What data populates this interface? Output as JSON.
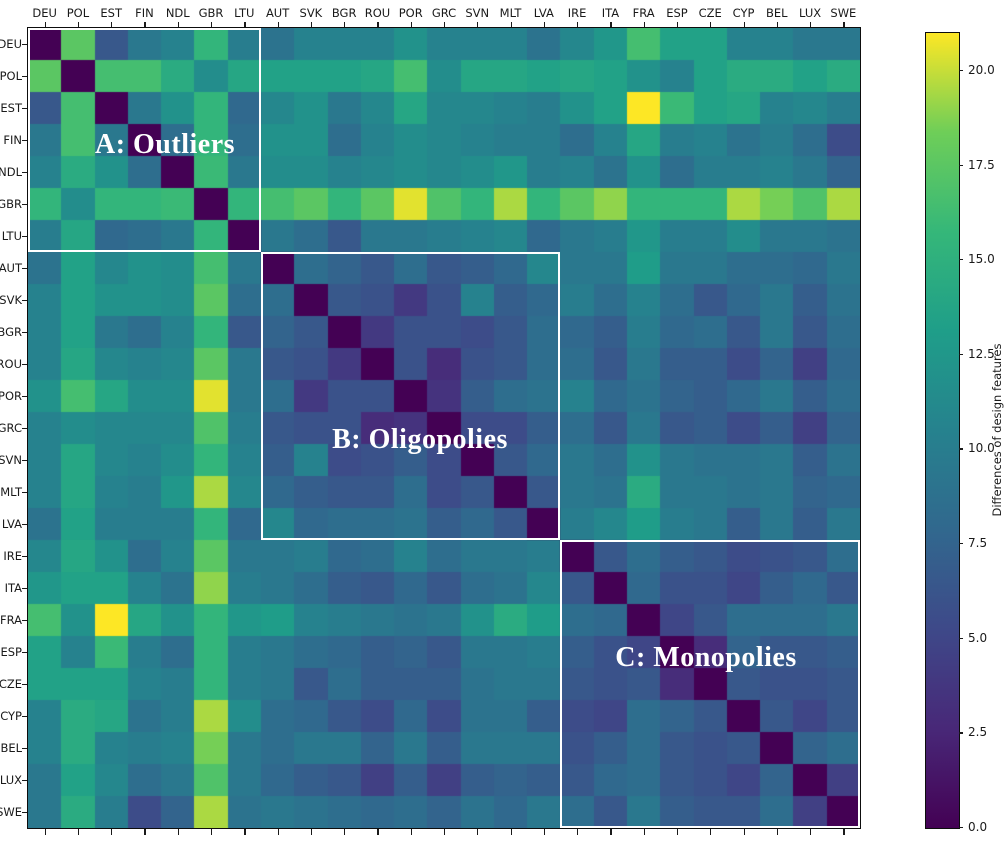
{
  "chart_data": {
    "type": "heatmap",
    "title": "",
    "categories": [
      "DEU",
      "POL",
      "EST",
      "FIN",
      "NDL",
      "GBR",
      "LTU",
      "AUT",
      "SVK",
      "BGR",
      "ROU",
      "POR",
      "GRC",
      "SVN",
      "MLT",
      "LVA",
      "IRE",
      "ITA",
      "FRA",
      "ESP",
      "CZE",
      "CYP",
      "BEL",
      "LUX",
      "SWE"
    ],
    "matrix": [
      [
        0,
        17.5,
        6.5,
        9.5,
        10.5,
        15.5,
        10,
        9,
        10.5,
        10.5,
        10.5,
        12,
        10.5,
        10.5,
        10.5,
        9,
        11,
        12.5,
        16.5,
        13.5,
        13.5,
        10.5,
        10.5,
        9.5,
        9.5
      ],
      [
        17.5,
        0,
        16.5,
        16.5,
        14.5,
        11.5,
        14,
        13.5,
        13.5,
        13.5,
        14,
        16.5,
        11.5,
        14,
        14,
        13.5,
        14,
        13.5,
        12,
        10.5,
        13.5,
        14.5,
        14.5,
        13.5,
        14.5
      ],
      [
        6.5,
        16.5,
        0,
        9.5,
        12,
        15.5,
        8,
        11,
        12,
        9.5,
        11,
        14,
        11,
        11,
        10.5,
        10,
        12,
        13.5,
        21,
        16,
        13.5,
        14,
        10.5,
        11,
        10
      ],
      [
        9.5,
        16.5,
        9.5,
        0,
        8.5,
        15.5,
        8.5,
        12,
        12,
        8.5,
        10.5,
        11.5,
        11,
        10.5,
        10,
        10,
        8.5,
        10.5,
        14,
        10,
        10.5,
        9,
        10,
        8.5,
        5.5
      ],
      [
        10.5,
        14.5,
        12,
        8.5,
        0,
        16,
        9.5,
        11.5,
        11.5,
        10.5,
        11,
        11.5,
        11,
        11.5,
        12.5,
        10,
        10.5,
        9,
        12,
        8.5,
        10,
        10,
        10.5,
        9.5,
        7.5
      ],
      [
        15.5,
        11.5,
        15.5,
        15.5,
        16,
        0,
        15.5,
        16.5,
        17.5,
        15.5,
        17.5,
        20.5,
        17,
        15.5,
        19.5,
        15.5,
        17.5,
        19,
        15.5,
        15.5,
        15.5,
        19.5,
        18.5,
        17,
        19.5
      ],
      [
        10,
        14,
        8,
        8.5,
        9.5,
        15.5,
        0,
        9.5,
        8.5,
        6.5,
        9.5,
        9.5,
        10,
        10.5,
        11,
        8,
        9.5,
        10,
        12.5,
        10,
        10,
        11.5,
        9.5,
        9.5,
        9
      ],
      [
        9,
        13.5,
        11,
        12,
        11.5,
        16.5,
        9.5,
        0,
        8.5,
        7.5,
        6.5,
        8.5,
        6.5,
        7,
        8,
        11,
        9.5,
        9.5,
        13,
        9.5,
        9.5,
        8.5,
        8.5,
        8,
        9.5
      ],
      [
        10.5,
        13.5,
        12,
        12,
        11.5,
        17.5,
        8.5,
        8.5,
        0,
        6.5,
        6,
        4,
        6,
        10.5,
        7,
        8,
        10,
        8.5,
        10.5,
        8.5,
        6.5,
        8,
        9.5,
        7,
        9
      ],
      [
        10.5,
        13.5,
        9.5,
        8.5,
        10.5,
        15.5,
        6.5,
        7.5,
        6.5,
        0,
        4,
        6,
        6,
        5.5,
        6.5,
        8.5,
        8,
        7,
        10,
        8,
        8.5,
        6.5,
        9.5,
        6.5,
        8.5
      ],
      [
        10.5,
        14,
        11,
        10.5,
        11,
        17.5,
        9.5,
        6.5,
        6,
        4,
        0,
        6,
        3,
        6,
        6.5,
        8.5,
        8.5,
        6.5,
        9.5,
        7,
        7,
        5.5,
        7.5,
        4.5,
        8
      ],
      [
        12,
        16.5,
        14,
        11.5,
        11.5,
        20.5,
        9.5,
        8.5,
        4,
        6,
        6,
        0,
        3.5,
        7,
        8.5,
        9,
        10.5,
        8,
        9,
        7.5,
        7,
        8,
        9.5,
        7,
        8.5
      ],
      [
        10.5,
        11.5,
        11,
        11,
        11,
        17,
        10,
        6.5,
        6,
        6,
        3,
        3.5,
        0,
        5.5,
        5.5,
        7,
        8.5,
        6.5,
        9.5,
        6.5,
        7,
        5.5,
        7,
        4.5,
        7.5
      ],
      [
        10.5,
        14,
        11,
        10.5,
        11.5,
        15.5,
        10.5,
        7,
        10.5,
        5.5,
        6,
        7,
        5.5,
        0,
        6.5,
        8,
        9.5,
        8.5,
        12,
        9.5,
        9,
        9,
        9.5,
        7,
        9
      ],
      [
        10.5,
        14,
        10.5,
        10,
        12.5,
        19.5,
        11,
        8,
        7,
        6.5,
        6.5,
        8.5,
        5.5,
        6.5,
        0,
        6.5,
        9.5,
        9,
        14.5,
        9.5,
        9.5,
        9,
        9.5,
        7.5,
        8
      ],
      [
        9,
        13.5,
        10,
        10,
        10,
        15.5,
        8,
        11,
        8,
        8.5,
        8.5,
        9,
        7,
        8,
        6.5,
        0,
        10,
        11,
        13,
        10,
        9.5,
        7,
        9.5,
        7,
        9.5
      ],
      [
        11,
        14,
        12,
        8.5,
        10.5,
        17.5,
        9.5,
        9.5,
        10,
        8,
        8.5,
        10.5,
        8.5,
        9.5,
        9.5,
        10,
        0,
        6.5,
        8.5,
        7,
        6.5,
        5.5,
        6,
        6.5,
        8.5
      ],
      [
        12.5,
        13.5,
        13.5,
        10.5,
        9,
        19,
        10,
        9.5,
        8.5,
        7,
        6.5,
        8,
        6.5,
        8.5,
        9,
        11,
        6.5,
        0,
        8,
        6,
        6,
        5,
        7,
        8,
        6.5
      ],
      [
        16.5,
        12,
        21,
        14,
        12,
        15.5,
        12.5,
        13,
        10.5,
        10,
        9.5,
        9,
        9.5,
        12,
        14.5,
        13,
        8.5,
        8,
        0,
        5,
        6.5,
        8.5,
        8.5,
        8.5,
        9.5
      ],
      [
        13.5,
        10.5,
        16,
        10,
        8.5,
        15.5,
        10,
        9.5,
        8.5,
        8,
        7,
        7.5,
        6.5,
        9.5,
        9.5,
        10,
        7,
        6,
        5,
        0,
        3,
        7.5,
        6.5,
        6.5,
        7
      ],
      [
        13.5,
        13.5,
        13.5,
        10.5,
        10,
        15.5,
        10,
        9.5,
        6.5,
        8.5,
        7,
        7,
        7,
        9,
        9.5,
        9.5,
        6.5,
        6,
        6.5,
        3,
        0,
        6.5,
        6,
        6,
        6.5
      ],
      [
        10.5,
        14.5,
        14,
        9,
        10,
        19.5,
        11.5,
        8.5,
        8,
        6.5,
        5.5,
        8,
        5.5,
        9,
        9,
        7,
        5.5,
        5,
        8.5,
        7.5,
        6.5,
        0,
        6.5,
        5,
        6.5
      ],
      [
        10.5,
        14.5,
        10.5,
        10,
        10.5,
        18.5,
        9.5,
        8.5,
        9.5,
        9.5,
        7.5,
        9.5,
        7,
        9.5,
        9.5,
        9.5,
        6,
        7,
        8.5,
        6.5,
        6,
        6.5,
        0,
        7.5,
        8.5
      ],
      [
        9.5,
        13.5,
        11,
        8.5,
        9.5,
        17,
        9.5,
        8,
        7,
        6.5,
        4.5,
        7,
        4.5,
        7,
        7.5,
        7,
        6.5,
        8,
        8.5,
        6.5,
        6,
        5,
        7.5,
        0,
        4.5
      ],
      [
        9.5,
        14.5,
        10,
        5.5,
        7.5,
        19.5,
        9,
        9.5,
        9,
        8.5,
        8,
        8.5,
        7.5,
        9,
        8,
        9.5,
        8.5,
        6.5,
        9.5,
        7,
        6.5,
        6.5,
        8.5,
        4.5,
        0
      ]
    ],
    "vmin": 0,
    "vmax": 21,
    "grid": false,
    "colormap": {
      "name": "viridis",
      "anchors": [
        {
          "t": 0.0,
          "color": "#440154"
        },
        {
          "t": 0.125,
          "color": "#482878"
        },
        {
          "t": 0.25,
          "color": "#3e4989"
        },
        {
          "t": 0.375,
          "color": "#31688e"
        },
        {
          "t": 0.5,
          "color": "#26828e"
        },
        {
          "t": 0.625,
          "color": "#1f9e89"
        },
        {
          "t": 0.75,
          "color": "#35b779"
        },
        {
          "t": 0.875,
          "color": "#6ece58"
        },
        {
          "t": 1.0,
          "color": "#fde725"
        }
      ]
    },
    "colorbar": {
      "label": "Differences of design features",
      "ticks": [
        "0.0",
        "2.5",
        "5.0",
        "7.5",
        "10.0",
        "12.5",
        "15.0",
        "17.5",
        "20.0"
      ],
      "tick_values": [
        0,
        2.5,
        5,
        7.5,
        10,
        12.5,
        15,
        17.5,
        20
      ],
      "position": "right"
    },
    "blocks": [
      {
        "id": "A",
        "label": "A: Outliers",
        "start": 0,
        "end": 6,
        "border_color": "#ffffff"
      },
      {
        "id": "B",
        "label": "B: Oligopolies",
        "start": 7,
        "end": 15,
        "border_color": "#ffffff"
      },
      {
        "id": "C",
        "label": "C: Monopolies",
        "start": 16,
        "end": 24,
        "border_color": "#ffffff"
      }
    ],
    "annotation_text_color": "#ffffff",
    "axis_text_color": "#1a1a1a"
  }
}
